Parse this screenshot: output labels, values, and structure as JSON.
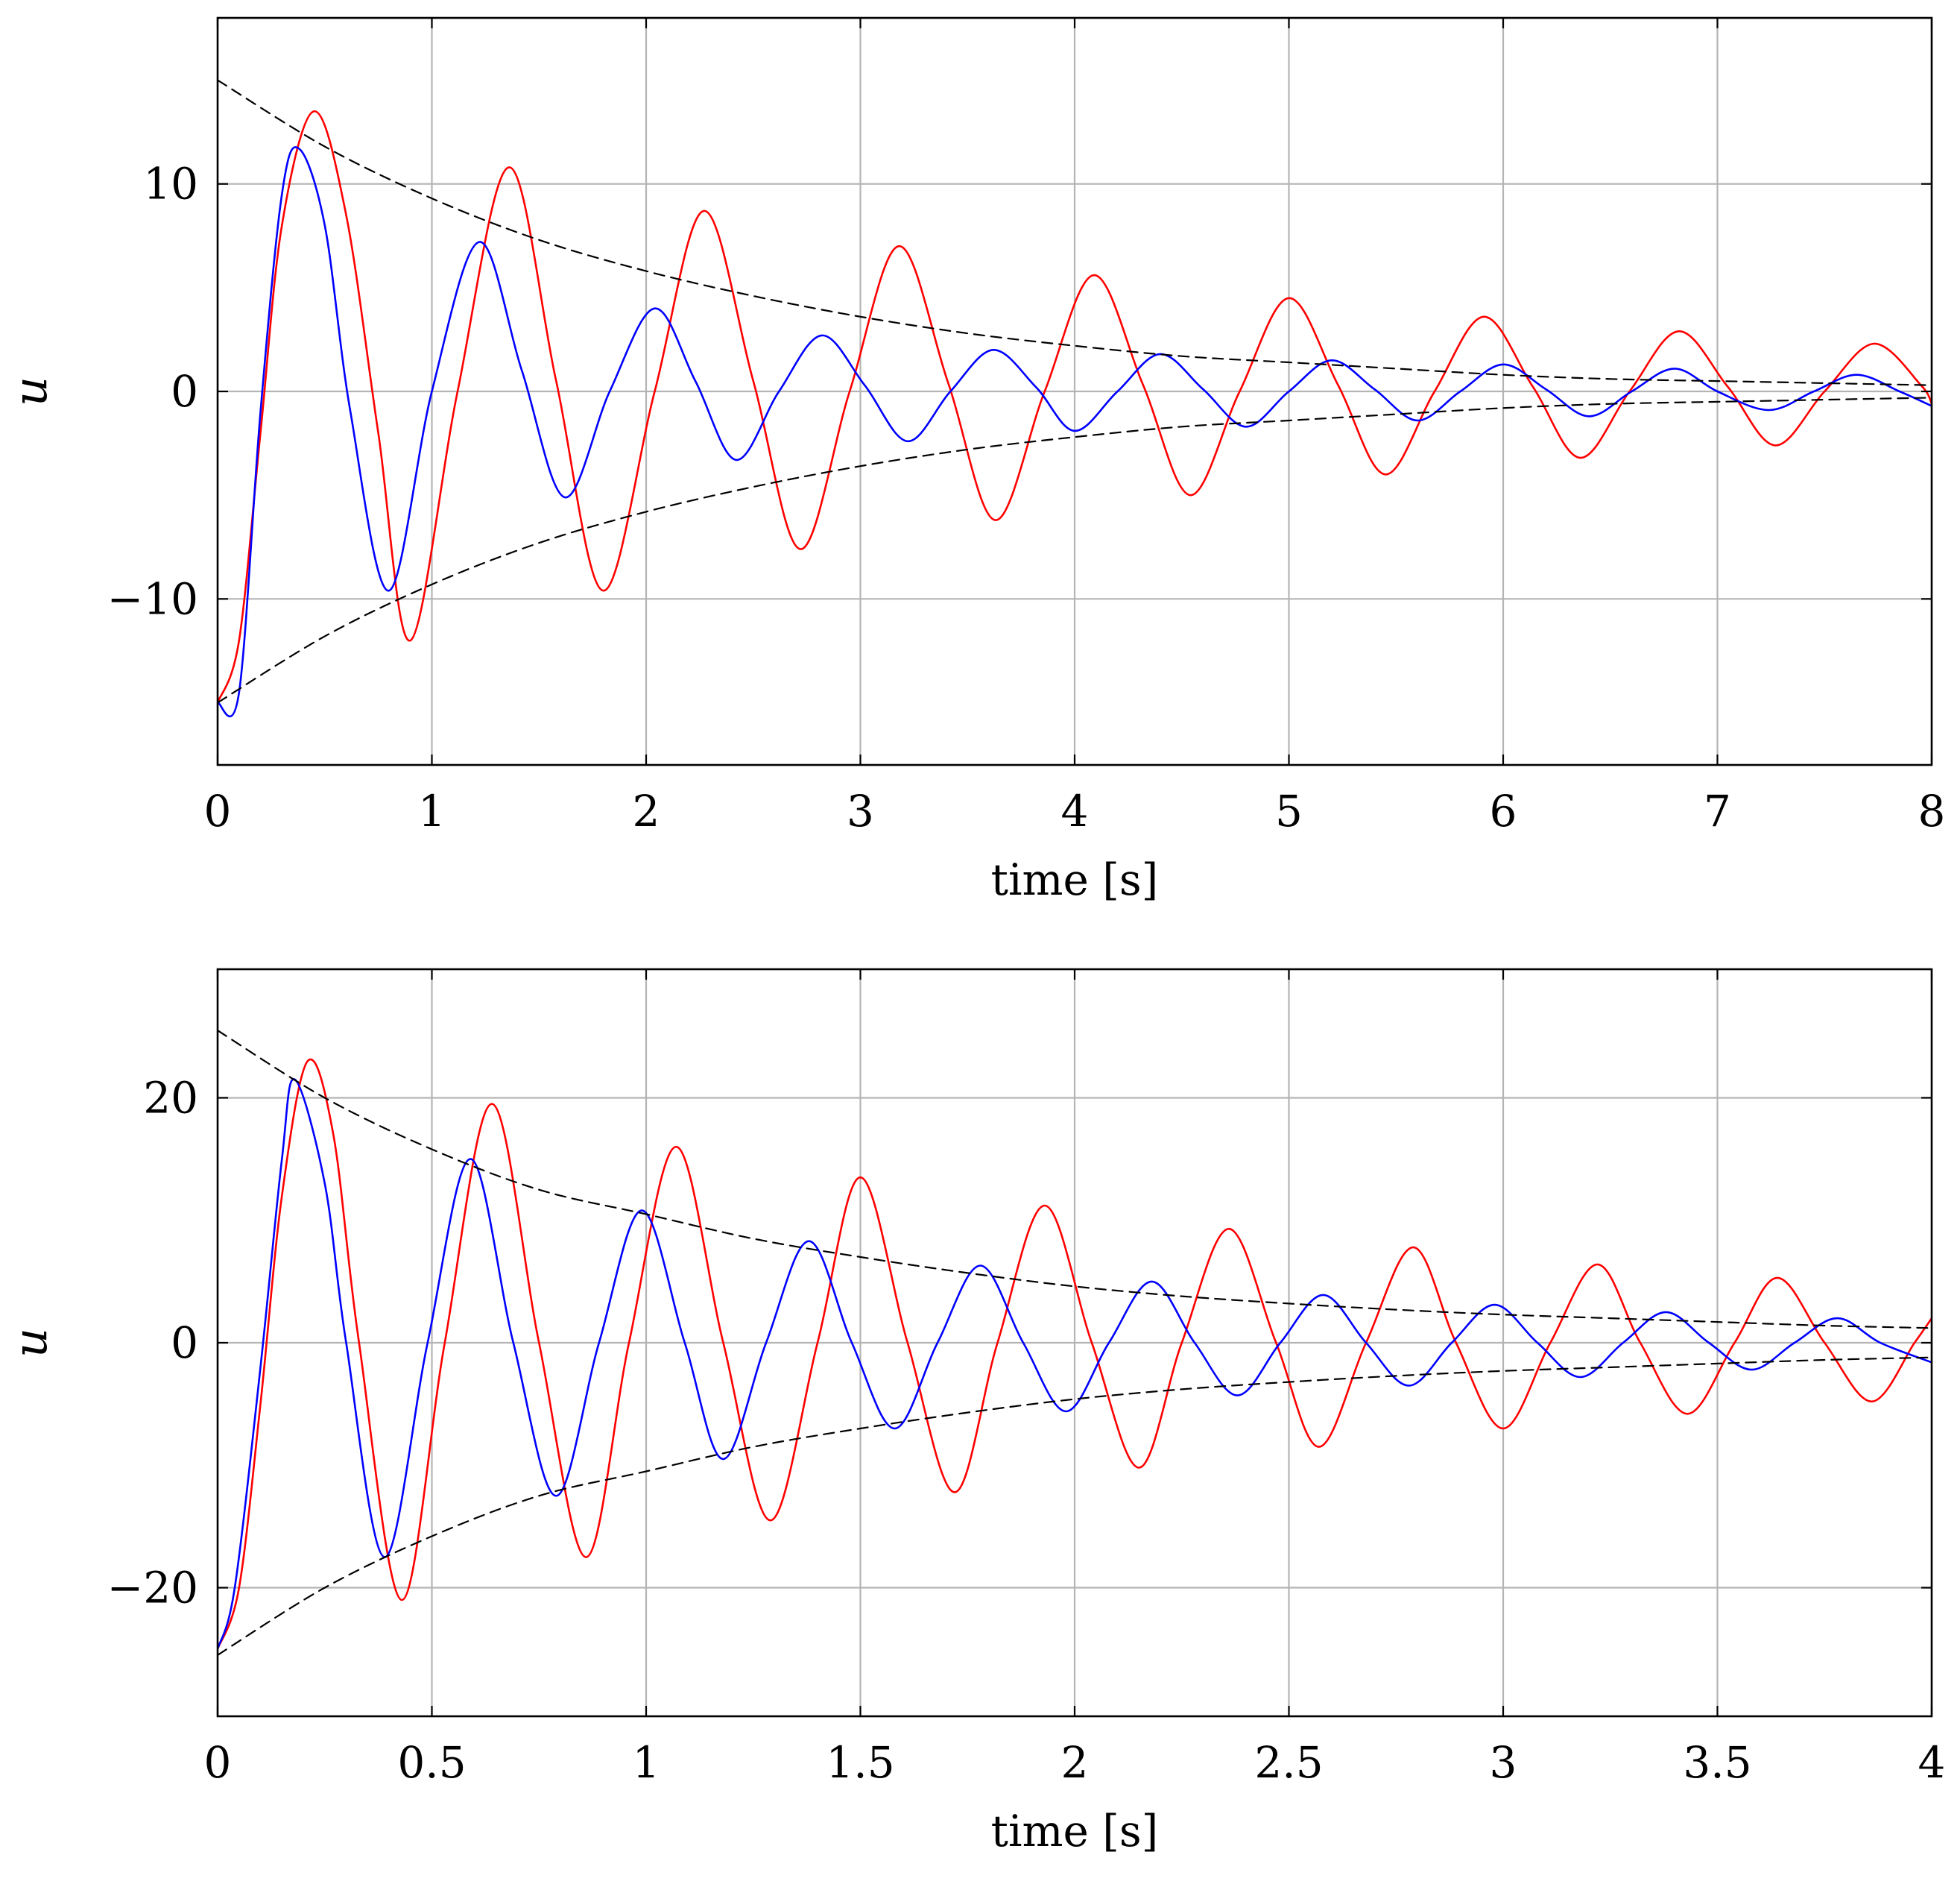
{
  "chart_data": [
    {
      "type": "line",
      "xlabel": "time [s]",
      "ylabel": "u",
      "xlim": [
        0,
        8
      ],
      "ylim": [
        -18,
        18
      ],
      "x_ticks": [
        0,
        1,
        2,
        3,
        4,
        5,
        6,
        7,
        8
      ],
      "x_tick_labels": [
        "0",
        "1",
        "2",
        "3",
        "4",
        "5",
        "6",
        "7",
        "8"
      ],
      "y_ticks": [
        -10,
        0,
        10
      ],
      "y_tick_labels": [
        "−10",
        "0",
        "10"
      ],
      "grid": true,
      "series": [
        {
          "name": "red response",
          "color": "#ff0000",
          "style": "solid",
          "x": [
            0,
            0.1,
            0.2,
            0.3,
            0.45,
            0.6,
            0.75,
            0.9,
            1.12,
            1.36,
            1.58,
            1.8,
            2.04,
            2.27,
            2.5,
            2.72,
            2.95,
            3.18,
            3.41,
            3.63,
            3.86,
            4.09,
            4.32,
            4.54,
            4.77,
            5.0,
            5.23,
            5.45,
            5.68,
            5.91,
            6.14,
            6.36,
            6.59,
            6.82,
            7.05,
            7.27,
            7.5,
            7.73,
            7.95,
            8.0
          ],
          "y": [
            -15,
            -12.0,
            -2.0,
            8.0,
            13.5,
            8.5,
            -2.0,
            -12.0,
            0.0,
            10.8,
            0.5,
            -9.6,
            0.0,
            8.7,
            0.5,
            -7.6,
            0.0,
            7.0,
            0.4,
            -6.2,
            0.0,
            5.6,
            0.3,
            -5.0,
            0.0,
            4.5,
            0.3,
            -4.0,
            0.0,
            3.6,
            0.2,
            -3.2,
            0.0,
            2.9,
            0.2,
            -2.6,
            0.0,
            2.3,
            0.3,
            -0.6
          ]
        },
        {
          "name": "blue response",
          "color": "#0000ff",
          "style": "solid",
          "x": [
            0,
            0.1,
            0.2,
            0.3,
            0.38,
            0.5,
            0.62,
            0.8,
            1.0,
            1.22,
            1.42,
            1.62,
            1.83,
            2.04,
            2.23,
            2.42,
            2.62,
            2.82,
            3.02,
            3.22,
            3.42,
            3.62,
            3.82,
            4.0,
            4.2,
            4.4,
            4.6,
            4.8,
            5.0,
            5.2,
            5.4,
            5.6,
            5.8,
            6.0,
            6.2,
            6.4,
            6.6,
            6.8,
            7.0,
            7.24,
            7.45,
            7.65,
            7.85,
            8.0
          ],
          "y": [
            -15,
            -14.5,
            -1.0,
            9.5,
            11.7,
            8.0,
            -1.0,
            -9.6,
            0.0,
            7.2,
            1.0,
            -5.1,
            0.0,
            4.0,
            0.5,
            -3.3,
            0.0,
            2.7,
            0.3,
            -2.4,
            0.0,
            2.0,
            0.2,
            -1.9,
            0.0,
            1.8,
            0.1,
            -1.7,
            0.0,
            1.5,
            0.1,
            -1.4,
            0.0,
            1.3,
            0.1,
            -1.2,
            0.0,
            1.1,
            0.0,
            -0.9,
            0.0,
            0.8,
            0.0,
            -0.7
          ]
        },
        {
          "name": "upper envelope",
          "color": "#000000",
          "style": "dashed",
          "x": [
            0,
            0.5,
            1,
            1.5,
            2,
            2.5,
            3,
            3.5,
            4,
            4.5,
            5,
            5.5,
            6,
            6.5,
            7,
            7.5,
            8
          ],
          "y": [
            15.0,
            11.8,
            9.3,
            7.3,
            5.8,
            4.6,
            3.6,
            2.8,
            2.2,
            1.7,
            1.4,
            1.1,
            0.8,
            0.6,
            0.5,
            0.4,
            0.3
          ]
        },
        {
          "name": "lower envelope",
          "color": "#000000",
          "style": "dashed",
          "x": [
            0,
            0.5,
            1,
            1.5,
            2,
            2.5,
            3,
            3.5,
            4,
            4.5,
            5,
            5.5,
            6,
            6.5,
            7,
            7.5,
            8
          ],
          "y": [
            -15.0,
            -11.8,
            -9.3,
            -7.3,
            -5.8,
            -4.6,
            -3.6,
            -2.8,
            -2.2,
            -1.7,
            -1.4,
            -1.1,
            -0.8,
            -0.6,
            -0.5,
            -0.4,
            -0.3
          ]
        }
      ]
    },
    {
      "type": "line",
      "xlabel": "time [s]",
      "ylabel": "u",
      "xlim": [
        0,
        4
      ],
      "ylim": [
        -30.5,
        30.5
      ],
      "x_ticks": [
        0,
        0.5,
        1,
        1.5,
        2,
        2.5,
        3,
        3.5,
        4
      ],
      "x_tick_labels": [
        "0",
        "0.5",
        "1",
        "1.5",
        "2",
        "2.5",
        "3",
        "3.5",
        "4"
      ],
      "y_ticks": [
        -20,
        0,
        20
      ],
      "y_tick_labels": [
        "−20",
        "0",
        "20"
      ],
      "grid": true,
      "series": [
        {
          "name": "red response",
          "color": "#ff0000",
          "style": "solid",
          "x": [
            0,
            0.05,
            0.1,
            0.15,
            0.21,
            0.27,
            0.33,
            0.43,
            0.53,
            0.64,
            0.75,
            0.86,
            0.96,
            1.07,
            1.18,
            1.29,
            1.4,
            1.5,
            1.61,
            1.72,
            1.82,
            1.93,
            2.04,
            2.15,
            2.25,
            2.36,
            2.47,
            2.57,
            2.68,
            2.79,
            2.89,
            3.0,
            3.11,
            3.22,
            3.32,
            3.43,
            3.54,
            3.64,
            3.75,
            3.86,
            3.96,
            4.0
          ],
          "y": [
            -25,
            -20.0,
            -5.0,
            12.0,
            23.0,
            17.0,
            0.0,
            -21.0,
            0.0,
            19.5,
            0.0,
            -17.5,
            0.0,
            16.0,
            0.0,
            -14.5,
            0.0,
            13.5,
            0.0,
            -12.2,
            0.0,
            11.2,
            0.0,
            -10.2,
            0.0,
            9.3,
            0.0,
            -8.5,
            0.0,
            7.8,
            0.0,
            -7.0,
            0.0,
            6.4,
            0.0,
            -5.8,
            0.0,
            5.3,
            0.0,
            -4.8,
            0.0,
            2.0
          ]
        },
        {
          "name": "blue response",
          "color": "#0000ff",
          "style": "solid",
          "x": [
            0,
            0.04,
            0.1,
            0.15,
            0.18,
            0.25,
            0.3,
            0.39,
            0.49,
            0.59,
            0.69,
            0.79,
            0.89,
            0.99,
            1.09,
            1.18,
            1.28,
            1.38,
            1.48,
            1.58,
            1.68,
            1.78,
            1.88,
            1.98,
            2.08,
            2.18,
            2.28,
            2.38,
            2.48,
            2.58,
            2.68,
            2.78,
            2.88,
            2.98,
            3.08,
            3.18,
            3.28,
            3.38,
            3.48,
            3.58,
            3.68,
            3.78,
            3.88,
            4.0
          ],
          "y": [
            -25,
            -20.0,
            -2.0,
            15.0,
            21.5,
            13.0,
            0.0,
            -17.5,
            0.0,
            15.0,
            0.0,
            -12.5,
            0.0,
            10.8,
            0.0,
            -9.5,
            0.0,
            8.3,
            0.0,
            -7.0,
            0.0,
            6.3,
            0.0,
            -5.6,
            0.0,
            5.0,
            0.0,
            -4.3,
            0.0,
            3.9,
            0.0,
            -3.5,
            0.0,
            3.1,
            0.0,
            -2.8,
            0.0,
            2.5,
            0.0,
            -2.2,
            0.0,
            2.0,
            0.0,
            -1.6
          ]
        },
        {
          "name": "upper envelope",
          "color": "#000000",
          "style": "dashed",
          "x": [
            0,
            0.25,
            0.5,
            0.75,
            1,
            1.25,
            1.5,
            1.75,
            2,
            2.25,
            2.5,
            2.75,
            3,
            3.25,
            3.5,
            3.75,
            4
          ],
          "y": [
            25.5,
            20.0,
            15.8,
            12.5,
            10.5,
            8.5,
            7.0,
            5.7,
            4.6,
            3.8,
            3.2,
            2.7,
            2.3,
            2.0,
            1.7,
            1.4,
            1.2
          ]
        },
        {
          "name": "lower envelope",
          "color": "#000000",
          "style": "dashed",
          "x": [
            0,
            0.25,
            0.5,
            0.75,
            1,
            1.25,
            1.5,
            1.75,
            2,
            2.25,
            2.5,
            2.75,
            3,
            3.25,
            3.5,
            3.75,
            4
          ],
          "y": [
            -25.5,
            -20.0,
            -15.8,
            -12.5,
            -10.5,
            -8.5,
            -7.0,
            -5.7,
            -4.6,
            -3.8,
            -3.2,
            -2.7,
            -2.3,
            -2.0,
            -1.7,
            -1.4,
            -1.2
          ]
        }
      ]
    }
  ]
}
